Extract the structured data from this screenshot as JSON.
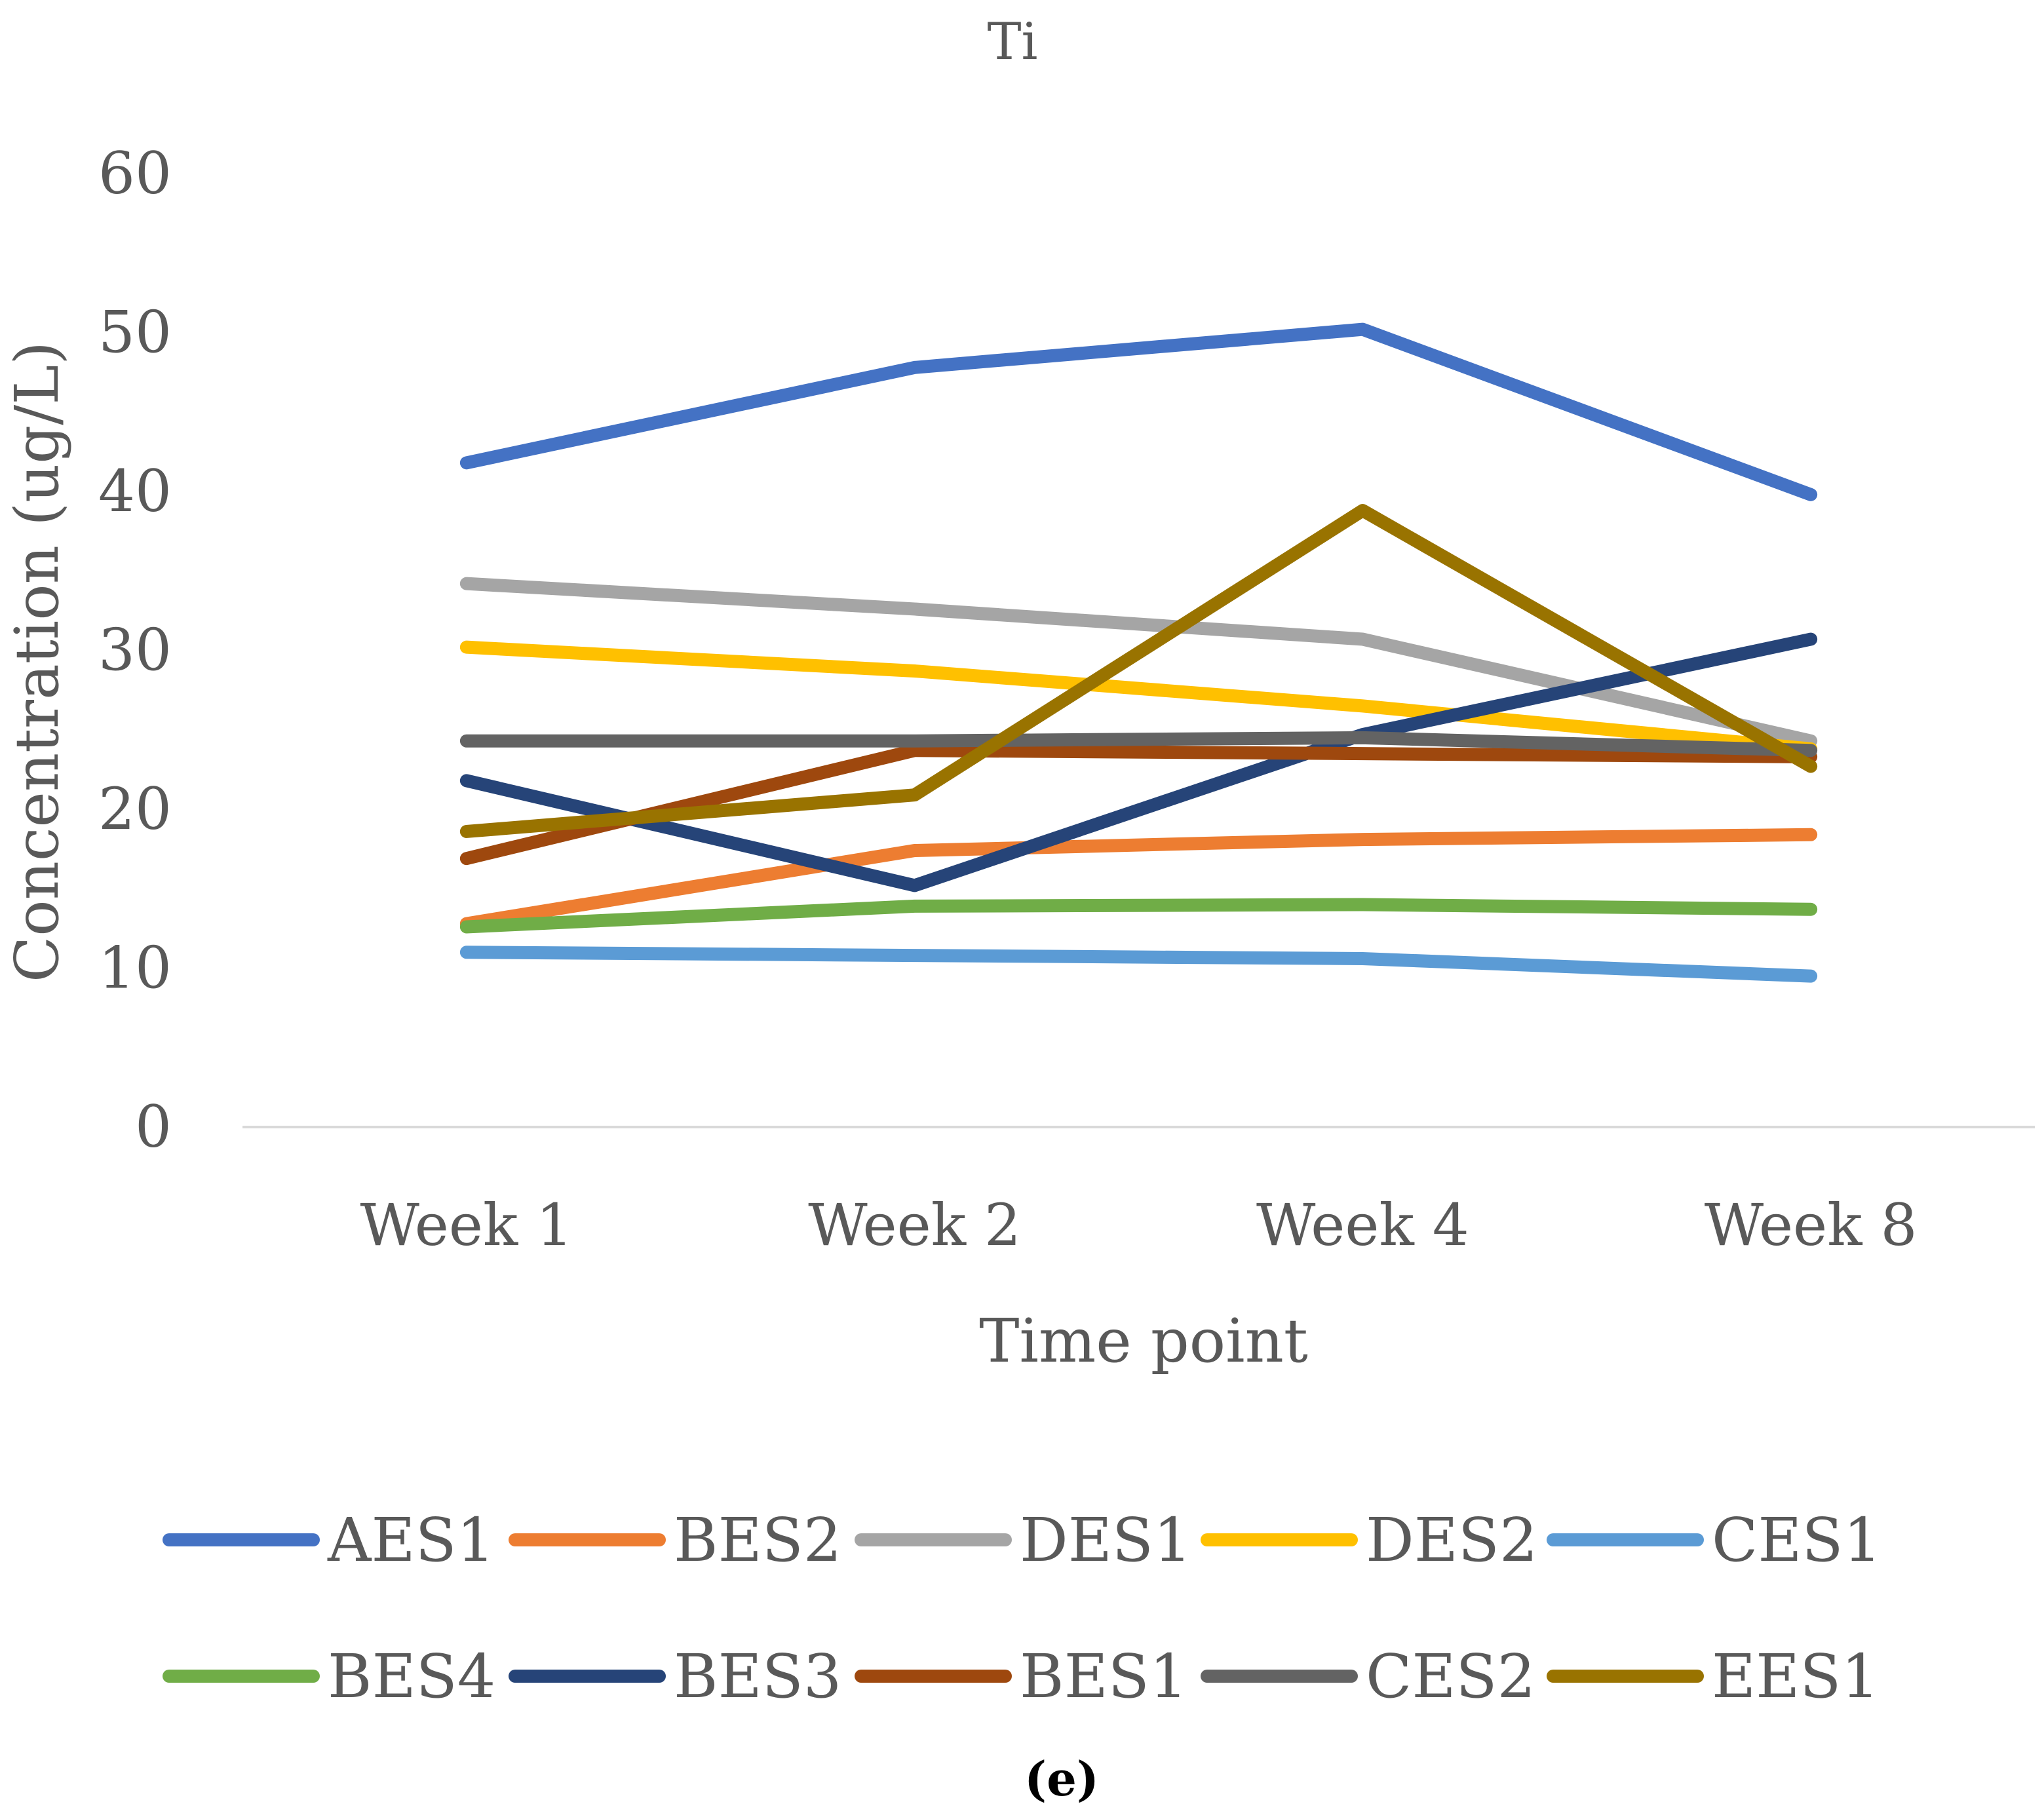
{
  "chart_data": {
    "type": "line",
    "title": "Ti",
    "xlabel": "Time point",
    "ylabel": "Concentration (ug/L)",
    "categories": [
      "Week 1",
      "Week 2",
      "Week 4",
      "Week 8"
    ],
    "ylim": [
      0,
      60
    ],
    "yticks": [
      0,
      10,
      20,
      30,
      40,
      50,
      60
    ],
    "grid": false,
    "legend_position": "bottom",
    "series": [
      {
        "name": "AES1",
        "color": "#4472C4",
        "values": [
          41.8,
          47.8,
          50.2,
          39.8
        ]
      },
      {
        "name": "BES2",
        "color": "#ED7D31",
        "values": [
          12.8,
          17.4,
          18.1,
          18.4
        ]
      },
      {
        "name": "DES1",
        "color": "#A5A5A5",
        "values": [
          34.2,
          32.6,
          30.7,
          24.3
        ]
      },
      {
        "name": "DES2",
        "color": "#FFC000",
        "values": [
          30.2,
          28.7,
          26.5,
          23.8
        ]
      },
      {
        "name": "CES1",
        "color": "#5B9BD5",
        "values": [
          11.0,
          10.8,
          10.6,
          9.5
        ]
      },
      {
        "name": "BES4",
        "color": "#70AD47",
        "values": [
          12.6,
          13.9,
          14.0,
          13.7
        ]
      },
      {
        "name": "BES3",
        "color": "#264478",
        "values": [
          21.8,
          15.2,
          24.7,
          30.7
        ]
      },
      {
        "name": "BES1",
        "color": "#9E480E",
        "values": [
          16.9,
          23.7,
          23.5,
          23.3
        ]
      },
      {
        "name": "CES2",
        "color": "#636363",
        "values": [
          24.3,
          24.3,
          24.5,
          23.7
        ]
      },
      {
        "name": "EES1",
        "color": "#997300",
        "values": [
          18.6,
          20.9,
          38.8,
          22.7
        ]
      }
    ]
  },
  "caption": "(e)"
}
